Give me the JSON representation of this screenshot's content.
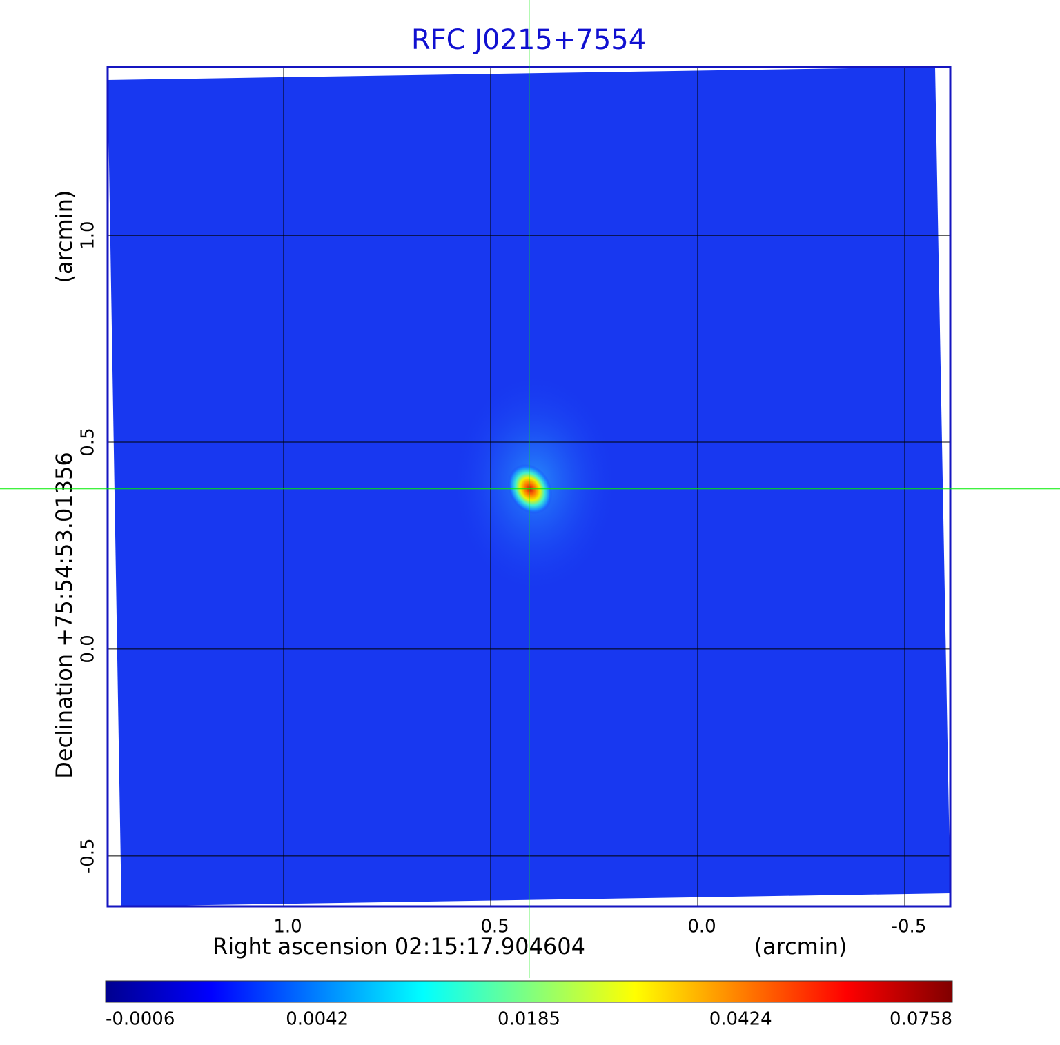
{
  "chart_data": {
    "type": "image",
    "title": "RFC J0215+7554",
    "x_label": "Right ascension  02:15:17.904604",
    "x_unit": "(arcmin)",
    "y_label": "Declination  +75:54:53.01356",
    "y_unit": "(arcmin)",
    "xlim": [
      1.425,
      -0.61
    ],
    "ylim": [
      -0.622,
      1.407
    ],
    "xticks": [
      {
        "value": 1,
        "label": "1.0"
      },
      0.5,
      {
        "value": 0,
        "label": "0.0"
      },
      -0.5
    ],
    "yticks": [
      {
        "value": -0.5,
        "label": "-0.5"
      },
      {
        "value": 0,
        "label": "0.0"
      },
      0.5,
      {
        "value": 1,
        "label": "1.0"
      }
    ],
    "grid": true,
    "crosshair": [
      0.407,
      0.387
    ],
    "crosshair_color": "#00ee00",
    "colormap": "jet",
    "colorbar_ticks": [
      -0.0006,
      0.0042,
      0.0185,
      0.0424,
      0.0758
    ]
  }
}
